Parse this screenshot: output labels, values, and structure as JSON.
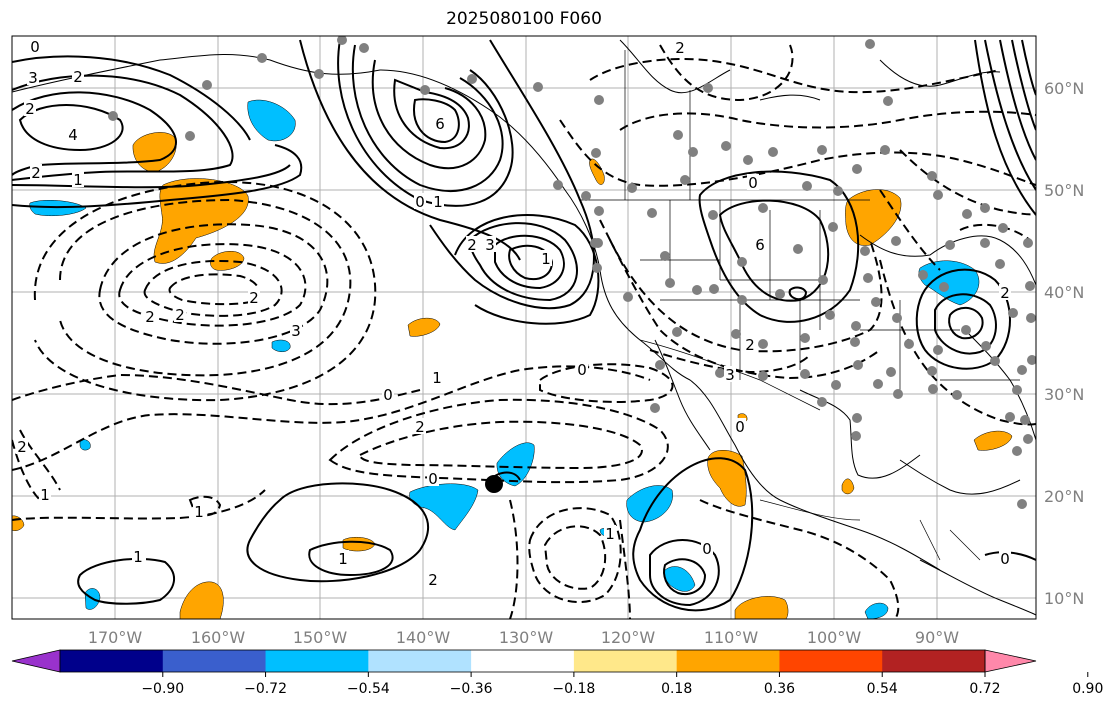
{
  "title": "2025080100 F060",
  "lon_labels": [
    "170°W",
    "160°W",
    "150°W",
    "140°W",
    "130°W",
    "120°W",
    "110°W",
    "100°W",
    "90°W"
  ],
  "lat_labels": [
    "60°N",
    "50°N",
    "40°N",
    "30°N",
    "20°N",
    "10°N"
  ],
  "colorbar": {
    "ticks": [
      "−0.90",
      "−0.72",
      "−0.54",
      "−0.36",
      "−0.18",
      "0.18",
      "0.36",
      "0.54",
      "0.72",
      "0.90"
    ],
    "colors": [
      "#9932cc",
      "#00008b",
      "#3a5fcd",
      "#00bfff",
      "#b0e2ff",
      "#ffffff",
      "#ffe88a",
      "#ffa500",
      "#ff4500",
      "#b22222",
      "#ff88aa"
    ]
  },
  "contour_labels": [
    "0",
    "3",
    "2",
    "6",
    "4",
    "2",
    "1",
    "0",
    "1",
    "6",
    "2",
    "2",
    "3",
    "1",
    "3",
    "2",
    "2",
    "0",
    "0",
    "2",
    "1",
    "0",
    "1",
    "0",
    "2",
    "2",
    "1",
    "1",
    "2",
    "0",
    "1",
    "0",
    "2",
    "0",
    "0",
    "2",
    "3",
    "2",
    "1"
  ],
  "colors": {
    "positive": "#ffa500",
    "negative": "#00bfff",
    "station": "#808080"
  }
}
